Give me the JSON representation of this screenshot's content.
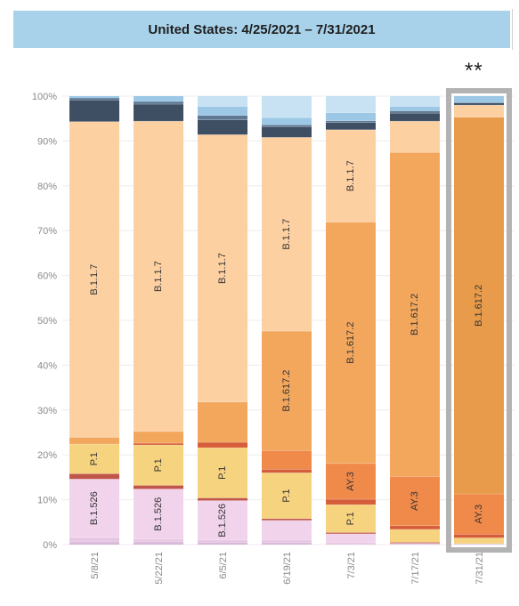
{
  "header": {
    "title": "United States: 4/25/2021 – 7/31/2021"
  },
  "marker": "**",
  "chart_data": {
    "type": "bar",
    "stacked": true,
    "title": "United States: 4/25/2021 – 7/31/2021",
    "xlabel": "",
    "ylabel": "",
    "ylim": [
      0,
      100
    ],
    "yticks": [
      "0%",
      "10%",
      "20%",
      "30%",
      "40%",
      "50%",
      "60%",
      "70%",
      "80%",
      "90%",
      "100%"
    ],
    "grid": true,
    "highlighted_category": "7/31/21",
    "categories": [
      "5/8/21",
      "5/22/21",
      "6/5/21",
      "6/19/21",
      "7/3/21",
      "7/17/21",
      "7/31/21"
    ],
    "bars": [
      {
        "category": "5/8/21",
        "segments": [
          {
            "label": "",
            "value": 0.6,
            "color": "#d9b8d9"
          },
          {
            "label": "",
            "value": 1.0,
            "color": "#e6c7e3"
          },
          {
            "label": "B.1.526",
            "value": 13.0,
            "color": "#f2d3ec"
          },
          {
            "label": "",
            "value": 1.2,
            "color": "#c0554a"
          },
          {
            "label": "P.1",
            "value": 6.6,
            "color": "#f6d37e"
          },
          {
            "label": "",
            "value": 1.5,
            "color": "#f2a75d"
          },
          {
            "label": "B.1.1.7",
            "value": 70.4,
            "color": "#fdd0a2"
          },
          {
            "label": "",
            "value": 4.8,
            "color": "#3e4e63"
          },
          {
            "label": "",
            "value": 0.5,
            "color": "#5e7893"
          },
          {
            "label": "",
            "value": 0.4,
            "color": "#9cc8e6"
          }
        ]
      },
      {
        "category": "5/22/21",
        "segments": [
          {
            "label": "",
            "value": 0.6,
            "color": "#d9b8d9"
          },
          {
            "label": "",
            "value": 0.6,
            "color": "#e6c7e3"
          },
          {
            "label": "B.1.526",
            "value": 11.2,
            "color": "#f2d3ec"
          },
          {
            "label": "",
            "value": 0.8,
            "color": "#c0554a"
          },
          {
            "label": "P.1",
            "value": 9.0,
            "color": "#f6d37e"
          },
          {
            "label": "",
            "value": 0.4,
            "color": "#d65d3a"
          },
          {
            "label": "",
            "value": 2.6,
            "color": "#f2a75d"
          },
          {
            "label": "B.1.1.7",
            "value": 69.2,
            "color": "#fdd0a2"
          },
          {
            "label": "",
            "value": 3.8,
            "color": "#3e4e63"
          },
          {
            "label": "",
            "value": 0.6,
            "color": "#5e7893"
          },
          {
            "label": "",
            "value": 1.2,
            "color": "#9cc8e6"
          }
        ]
      },
      {
        "category": "6/5/21",
        "segments": [
          {
            "label": "",
            "value": 0.5,
            "color": "#d9b8d9"
          },
          {
            "label": "",
            "value": 0.5,
            "color": "#e6c7e3"
          },
          {
            "label": "B.1.526",
            "value": 8.8,
            "color": "#f2d3ec"
          },
          {
            "label": "",
            "value": 0.6,
            "color": "#c0554a"
          },
          {
            "label": "P.1",
            "value": 11.2,
            "color": "#f6d37e"
          },
          {
            "label": "",
            "value": 1.2,
            "color": "#d65d3a"
          },
          {
            "label": "",
            "value": 9.0,
            "color": "#f2a75d"
          },
          {
            "label": "B.1.1.7",
            "value": 59.6,
            "color": "#fdd0a2"
          },
          {
            "label": "",
            "value": 3.3,
            "color": "#3e4e63"
          },
          {
            "label": "",
            "value": 1.0,
            "color": "#5e7893"
          },
          {
            "label": "",
            "value": 2.0,
            "color": "#9cc8e6"
          },
          {
            "label": "",
            "value": 2.3,
            "color": "#c8e2f4"
          }
        ]
      },
      {
        "category": "6/19/21",
        "segments": [
          {
            "label": "",
            "value": 0.4,
            "color": "#d9b8d9"
          },
          {
            "label": "",
            "value": 0.6,
            "color": "#e6c7e3"
          },
          {
            "label": "",
            "value": 4.4,
            "color": "#f2d3ec"
          },
          {
            "label": "",
            "value": 0.4,
            "color": "#c0554a"
          },
          {
            "label": "P.1",
            "value": 10.2,
            "color": "#f6d37e"
          },
          {
            "label": "",
            "value": 0.8,
            "color": "#d65d3a"
          },
          {
            "label": "",
            "value": 4.2,
            "color": "#f08a4b"
          },
          {
            "label": "B.1.617.2",
            "value": 26.6,
            "color": "#f2a75d"
          },
          {
            "label": "B.1.1.7",
            "value": 43.2,
            "color": "#fdd0a2"
          },
          {
            "label": "",
            "value": 2.4,
            "color": "#3e4e63"
          },
          {
            "label": "",
            "value": 0.4,
            "color": "#5e7893"
          },
          {
            "label": "",
            "value": 1.6,
            "color": "#9cc8e6"
          },
          {
            "label": "",
            "value": 4.8,
            "color": "#c8e2f4"
          }
        ]
      },
      {
        "category": "7/3/21",
        "segments": [
          {
            "label": "",
            "value": 0.4,
            "color": "#e6c7e3"
          },
          {
            "label": "",
            "value": 2.0,
            "color": "#f2d3ec"
          },
          {
            "label": "",
            "value": 0.3,
            "color": "#c0554a"
          },
          {
            "label": "P.1",
            "value": 6.2,
            "color": "#f6d37e"
          },
          {
            "label": "",
            "value": 1.2,
            "color": "#d65d3a"
          },
          {
            "label": "AY.3",
            "value": 8.0,
            "color": "#f08a4b"
          },
          {
            "label": "B.1.617.2",
            "value": 53.8,
            "color": "#f2a75d"
          },
          {
            "label": "B.1.1.7",
            "value": 20.6,
            "color": "#fdd0a2"
          },
          {
            "label": "",
            "value": 1.6,
            "color": "#3e4e63"
          },
          {
            "label": "",
            "value": 0.4,
            "color": "#5e7893"
          },
          {
            "label": "",
            "value": 1.8,
            "color": "#9cc8e6"
          },
          {
            "label": "",
            "value": 3.7,
            "color": "#c8e2f4"
          }
        ]
      },
      {
        "category": "7/17/21",
        "segments": [
          {
            "label": "",
            "value": 0.3,
            "color": "#e6c7e3"
          },
          {
            "label": "",
            "value": 0.2,
            "color": "#c0554a"
          },
          {
            "label": "",
            "value": 2.9,
            "color": "#f6d37e"
          },
          {
            "label": "",
            "value": 0.8,
            "color": "#d65d3a"
          },
          {
            "label": "AY.3",
            "value": 11.0,
            "color": "#f08a4b"
          },
          {
            "label": "B.1.617.2",
            "value": 72.2,
            "color": "#f2a75d"
          },
          {
            "label": "",
            "value": 7.0,
            "color": "#fdd0a2"
          },
          {
            "label": "",
            "value": 1.8,
            "color": "#3e4e63"
          },
          {
            "label": "",
            "value": 0.5,
            "color": "#5e7893"
          },
          {
            "label": "",
            "value": 1.0,
            "color": "#9cc8e6"
          },
          {
            "label": "",
            "value": 2.3,
            "color": "#c8e2f4"
          }
        ]
      },
      {
        "category": "7/31/21",
        "segments": [
          {
            "label": "",
            "value": 0.2,
            "color": "#e6c7e3"
          },
          {
            "label": "",
            "value": 1.3,
            "color": "#f6d37e"
          },
          {
            "label": "",
            "value": 0.8,
            "color": "#d65d3a"
          },
          {
            "label": "AY.3",
            "value": 9.0,
            "color": "#f08a4b"
          },
          {
            "label": "B.1.617.2",
            "value": 84.0,
            "color": "#e89b4a"
          },
          {
            "label": "",
            "value": 2.7,
            "color": "#fdd0a2"
          },
          {
            "label": "",
            "value": 0.5,
            "color": "#3e4e63"
          },
          {
            "label": "",
            "value": 1.5,
            "color": "#9cc8e6"
          }
        ]
      }
    ]
  }
}
